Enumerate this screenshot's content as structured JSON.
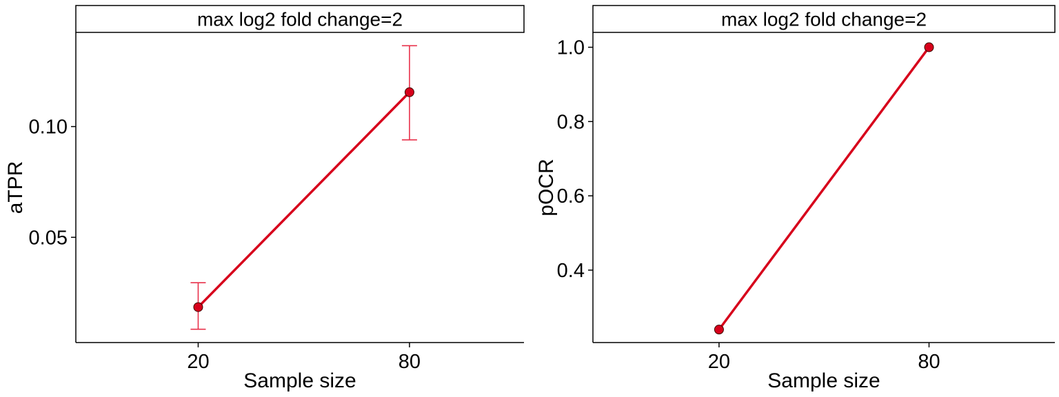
{
  "chart_data": [
    {
      "type": "line",
      "strip_title": "max log2 fold change=2",
      "xlabel": "Sample size",
      "ylabel": "aTPR",
      "x_categories": [
        "20",
        "80"
      ],
      "y_ticks": [
        0.05,
        0.1
      ],
      "y_tick_labels": [
        "0.05",
        "0.10"
      ],
      "ylim": [
        0.0025,
        0.1425
      ],
      "series": [
        {
          "values": [
            0.0185,
            0.1155
          ],
          "error_lower": [
            0.0085,
            0.094
          ],
          "error_upper": [
            0.0295,
            0.1365
          ]
        }
      ],
      "grid": false,
      "legend": "none"
    },
    {
      "type": "line",
      "strip_title": "max log2 fold change=2",
      "xlabel": "Sample size",
      "ylabel": "pOCR",
      "x_categories": [
        "20",
        "80"
      ],
      "y_ticks": [
        0.4,
        0.6,
        0.8,
        1.0
      ],
      "y_tick_labels": [
        "0.4",
        "0.6",
        "0.8",
        "1.0"
      ],
      "ylim": [
        0.205,
        1.04
      ],
      "series": [
        {
          "values": [
            0.24,
            1.0
          ]
        }
      ],
      "grid": false,
      "legend": "none"
    }
  ],
  "colors": {
    "line": "#d7001b",
    "point_fill": "#d7001b",
    "point_stroke": "#3a0000",
    "errorbar": "#e8304a",
    "axis": "#000000"
  }
}
